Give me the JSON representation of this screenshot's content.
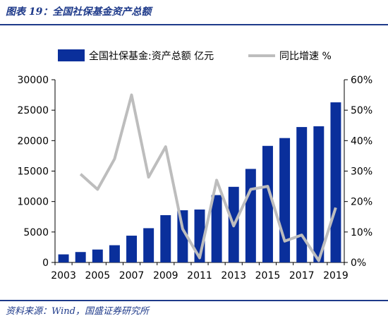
{
  "caption": "图表 19：全国社保基金资产总额",
  "source": "资料来源：Wind，国盛证券研究所",
  "colors": {
    "bar": "#0a2f9b",
    "line": "#bdbdbd",
    "caption": "#1e3a8a"
  },
  "chart_data": {
    "type": "bar+line",
    "categories": [
      "2003",
      "2004",
      "2005",
      "2006",
      "2007",
      "2008",
      "2009",
      "2010",
      "2011",
      "2012",
      "2013",
      "2014",
      "2015",
      "2016",
      "2017",
      "2018",
      "2019"
    ],
    "x_tick_labels": [
      "2003",
      "2005",
      "2007",
      "2009",
      "2011",
      "2013",
      "2015",
      "2017",
      "2019"
    ],
    "series": [
      {
        "name": "全国社保基金:资产总额 亿元",
        "kind": "bar",
        "axis": "left",
        "values": [
          1325,
          1711,
          2118,
          2828,
          4397,
          5624,
          7766,
          8567,
          8689,
          11060,
          12416,
          15356,
          19138,
          20423,
          22231,
          22354,
          26286
        ]
      },
      {
        "name": "同比增速 %",
        "kind": "line",
        "axis": "right",
        "values": [
          null,
          29,
          24,
          34,
          55,
          28,
          38,
          11,
          1.5,
          27,
          12,
          24,
          25,
          7,
          9,
          0.6,
          18
        ]
      }
    ],
    "left_axis": {
      "ylim": [
        0,
        30000
      ],
      "ticks": [
        "0",
        "5000",
        "10000",
        "15000",
        "20000",
        "25000",
        "30000"
      ]
    },
    "right_axis": {
      "ylim": [
        0,
        60
      ],
      "ticks": [
        "0%",
        "10%",
        "20%",
        "30%",
        "40%",
        "50%",
        "60%"
      ]
    },
    "legend": {
      "placement": "top"
    }
  }
}
